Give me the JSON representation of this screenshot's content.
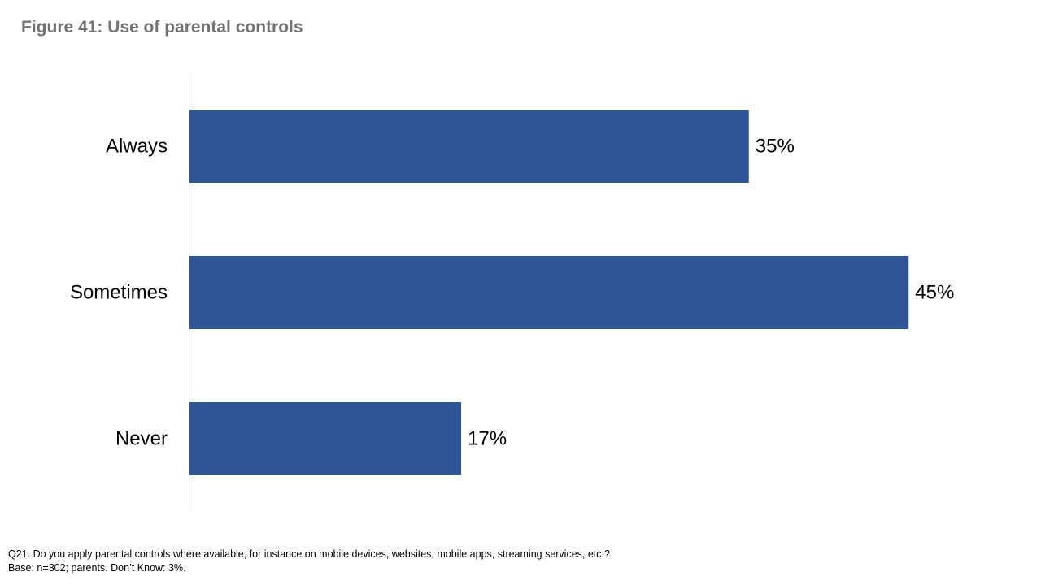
{
  "title": "Figure 41: Use of parental controls",
  "chart_data": {
    "type": "bar",
    "orientation": "horizontal",
    "categories": [
      "Always",
      "Sometimes",
      "Never"
    ],
    "values": [
      35,
      45,
      17
    ],
    "value_labels": [
      "35%",
      "45%",
      "17%"
    ],
    "unit": "%",
    "xlim": [
      0,
      50
    ],
    "bar_color": "#2F5597",
    "grid": false,
    "legend": "none"
  },
  "footnote": {
    "question": "Q21. Do you apply parental controls where available, for instance on mobile devices, websites, mobile apps, streaming services, etc.?",
    "base": "Base: n=302; parents. Don’t Know: 3%."
  }
}
